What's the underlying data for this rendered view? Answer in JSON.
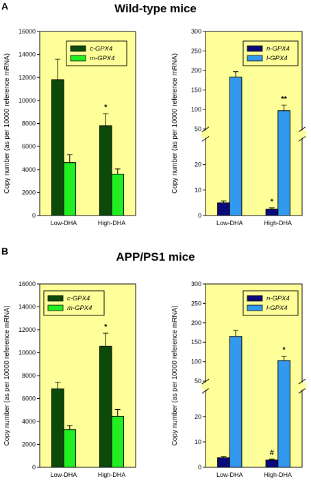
{
  "figure": {
    "sections": [
      {
        "letter": "A",
        "title": "Wild-type mice"
      },
      {
        "letter": "B",
        "title": "APP/PS1 mice"
      }
    ],
    "colors": {
      "background": "#ffff99",
      "c_gpx4": "#0b4a0b",
      "m_gpx4": "#22ee22",
      "n_gpx4": "#0a0a7a",
      "l_gpx4": "#3399ee"
    }
  },
  "chart_data": [
    {
      "type": "bar",
      "section": "A",
      "categories": [
        "Low-DHA",
        "High-DHA"
      ],
      "ylabel": "Copy number (as per 10000 reference mRNA)",
      "ylim": [
        0,
        16000
      ],
      "yticks": [
        0,
        2000,
        4000,
        6000,
        8000,
        10000,
        12000,
        14000,
        16000
      ],
      "legend_position": "top-left",
      "series": [
        {
          "name": "c-GPX4",
          "color": "#0b4a0b",
          "values": [
            11800,
            7800
          ],
          "errors": [
            1800,
            1050
          ],
          "annotations": [
            "",
            "*"
          ]
        },
        {
          "name": "m-GPX4",
          "color": "#22ee22",
          "values": [
            4600,
            3600
          ],
          "errors": [
            700,
            450
          ],
          "annotations": [
            "",
            ""
          ]
        }
      ]
    },
    {
      "type": "bar",
      "section": "A",
      "categories": [
        "Low-DHA",
        "High-DHA"
      ],
      "ylabel": "Copy number (as per 10000 reference mRNA)",
      "ylim": [
        0,
        300
      ],
      "axis_break": {
        "lower_range": [
          0,
          30
        ],
        "upper_range": [
          50,
          300
        ]
      },
      "yticks": [
        0,
        10,
        20,
        50,
        100,
        150,
        200,
        250,
        300
      ],
      "legend_position": "top-right",
      "series": [
        {
          "name": "n-GPX4",
          "color": "#0a0a7a",
          "values": [
            5,
            2.5
          ],
          "errors": [
            0.7,
            0.5
          ],
          "annotations": [
            "",
            "*"
          ]
        },
        {
          "name": "l-GPX4",
          "color": "#3399ee",
          "values": [
            183,
            97
          ],
          "errors": [
            14,
            14
          ],
          "annotations": [
            "",
            "**"
          ]
        }
      ]
    },
    {
      "type": "bar",
      "section": "B",
      "categories": [
        "Low-DHA",
        "High-DHA"
      ],
      "ylabel": "Copy number (as per 10000 reference mRNA)",
      "ylim": [
        0,
        16000
      ],
      "yticks": [
        0,
        2000,
        4000,
        6000,
        8000,
        10000,
        12000,
        14000,
        16000
      ],
      "legend_position": "top-left",
      "series": [
        {
          "name": "c-GPX4",
          "color": "#0b4a0b",
          "values": [
            6850,
            10550
          ],
          "errors": [
            550,
            1150
          ],
          "annotations": [
            "",
            "*"
          ]
        },
        {
          "name": "m-GPX4",
          "color": "#22ee22",
          "values": [
            3300,
            4450
          ],
          "errors": [
            350,
            600
          ],
          "annotations": [
            "",
            ""
          ]
        }
      ]
    },
    {
      "type": "bar",
      "section": "B",
      "categories": [
        "Low-DHA",
        "High-DHA"
      ],
      "ylabel": "Copy number (as per 10000 reference mRNA)",
      "ylim": [
        0,
        300
      ],
      "axis_break": {
        "lower_range": [
          0,
          30
        ],
        "upper_range": [
          50,
          300
        ]
      },
      "yticks": [
        0,
        10,
        20,
        50,
        100,
        150,
        200,
        250,
        300
      ],
      "legend_position": "top-right",
      "series": [
        {
          "name": "n-GPX4",
          "color": "#0a0a7a",
          "values": [
            3.8,
            2.9
          ],
          "errors": [
            0.4,
            0.3
          ],
          "annotations": [
            "",
            "#"
          ]
        },
        {
          "name": "l-GPX4",
          "color": "#3399ee",
          "values": [
            165,
            103
          ],
          "errors": [
            16,
            11
          ],
          "annotations": [
            "",
            "*"
          ]
        }
      ]
    }
  ]
}
